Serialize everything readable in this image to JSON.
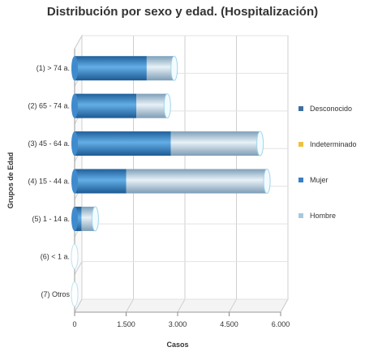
{
  "chart_data": {
    "type": "bar",
    "orientation": "horizontal",
    "stacked": true,
    "title": "Distribución por sexo y edad. (Hospitalización)",
    "xlabel": "Casos",
    "ylabel": "Grupos de Edad",
    "categories": [
      "(1) > 74 a.",
      "(2) 65 - 74 a.",
      "(3) 45 - 64 a.",
      "(4) 15 - 44 a.",
      "(5) 1 - 14 a.",
      "(6) < 1 a.",
      "(7) Otros"
    ],
    "series": [
      {
        "name": "Desconocido",
        "values": [
          0,
          0,
          0,
          0,
          0,
          0,
          0
        ],
        "color": "#3f6f9f"
      },
      {
        "name": "Indeterminado",
        "values": [
          0,
          0,
          0,
          0,
          0,
          0,
          0
        ],
        "color": "#f0c040"
      },
      {
        "name": "Mujer",
        "values": [
          2100,
          1800,
          2800,
          1500,
          200,
          0,
          0
        ],
        "color": "#3a7fc4"
      },
      {
        "name": "Hombre",
        "values": [
          800,
          900,
          2600,
          4100,
          400,
          0,
          0
        ],
        "color": "#a9c8de"
      }
    ],
    "xlim": [
      0,
      6000
    ],
    "xticks": [
      0,
      1500,
      3000,
      4500,
      6000
    ],
    "xtick_labels": [
      "0",
      "1.500",
      "3.000",
      "4.500",
      "6.000"
    ],
    "grid": true,
    "legend_position": "right"
  }
}
